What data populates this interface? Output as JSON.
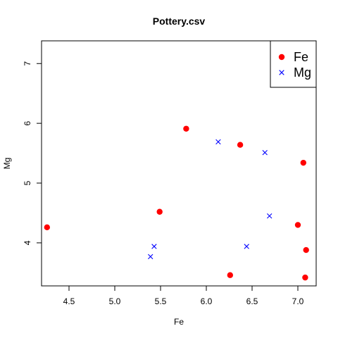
{
  "chart_data": {
    "type": "scatter",
    "title": "Pottery.csv",
    "xlabel": "Fe",
    "ylabel": "Mg",
    "xlim": [
      4.2,
      7.2
    ],
    "ylim": [
      3.28,
      7.38
    ],
    "x_ticks": [
      "4.5",
      "5.0",
      "5.5",
      "6.0",
      "6.5",
      "7.0"
    ],
    "y_ticks": [
      "4",
      "5",
      "6",
      "7"
    ],
    "grid": false,
    "legend_position": "top-right",
    "series": [
      {
        "name": "Fe",
        "marker": "filled-circle",
        "color": "#ff0000",
        "points": [
          {
            "x": 4.26,
            "y": 4.26
          },
          {
            "x": 5.49,
            "y": 4.52
          },
          {
            "x": 5.78,
            "y": 5.91
          },
          {
            "x": 6.26,
            "y": 3.46
          },
          {
            "x": 6.37,
            "y": 5.64
          },
          {
            "x": 7.0,
            "y": 4.3
          },
          {
            "x": 7.06,
            "y": 5.34
          },
          {
            "x": 7.08,
            "y": 3.42
          },
          {
            "x": 7.09,
            "y": 3.88
          }
        ]
      },
      {
        "name": "Mg",
        "marker": "cross",
        "color": "#0000ff",
        "points": [
          {
            "x": 5.39,
            "y": 3.77
          },
          {
            "x": 5.43,
            "y": 3.94
          },
          {
            "x": 6.13,
            "y": 5.69
          },
          {
            "x": 6.44,
            "y": 3.94
          },
          {
            "x": 6.64,
            "y": 5.51
          },
          {
            "x": 6.69,
            "y": 4.45
          }
        ]
      }
    ]
  }
}
